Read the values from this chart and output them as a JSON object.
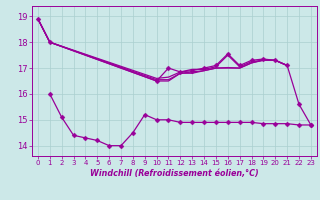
{
  "x": [
    0,
    1,
    2,
    3,
    4,
    5,
    6,
    7,
    8,
    9,
    10,
    11,
    12,
    13,
    14,
    15,
    16,
    17,
    18,
    19,
    20,
    21,
    22,
    23
  ],
  "line1": [
    18.9,
    18.0,
    null,
    null,
    null,
    null,
    null,
    null,
    null,
    null,
    16.5,
    16.5,
    16.8,
    16.8,
    16.9,
    17.0,
    17.0,
    17.0,
    17.2,
    17.3,
    17.3,
    17.1,
    null,
    null
  ],
  "line2": [
    18.9,
    18.0,
    null,
    null,
    null,
    null,
    null,
    null,
    null,
    null,
    16.6,
    16.65,
    16.85,
    16.95,
    16.95,
    17.05,
    17.5,
    17.05,
    17.25,
    17.3,
    17.3,
    17.1,
    null,
    null
  ],
  "line3": [
    18.9,
    18.0,
    null,
    null,
    null,
    null,
    null,
    null,
    null,
    null,
    16.55,
    16.55,
    16.8,
    16.85,
    16.9,
    17.0,
    17.02,
    17.0,
    17.2,
    17.32,
    17.3,
    17.1,
    null,
    null
  ],
  "scatter_upper": [
    18.9,
    18.0,
    null,
    null,
    null,
    null,
    null,
    null,
    null,
    null,
    16.5,
    17.0,
    16.85,
    16.9,
    17.0,
    17.1,
    17.55,
    17.1,
    17.3,
    17.35,
    17.3,
    17.1,
    15.6,
    14.8
  ],
  "scatter_lower": [
    null,
    16.0,
    15.1,
    14.4,
    14.3,
    14.2,
    14.0,
    14.0,
    14.5,
    15.2,
    15.0,
    15.0,
    14.9,
    14.9,
    14.9,
    14.9,
    14.9,
    14.9,
    14.9,
    14.85,
    14.85,
    14.85,
    14.8,
    14.8
  ],
  "xlabel": "Windchill (Refroidissement éolien,°C)",
  "xticks": [
    0,
    1,
    2,
    3,
    4,
    5,
    6,
    7,
    8,
    9,
    10,
    11,
    12,
    13,
    14,
    15,
    16,
    17,
    18,
    19,
    20,
    21,
    22,
    23
  ],
  "yticks": [
    14,
    15,
    16,
    17,
    18,
    19
  ],
  "ylim": [
    13.6,
    19.4
  ],
  "xlim": [
    -0.5,
    23.5
  ],
  "bg_color": "#cce8e8",
  "grid_color": "#aacfcf",
  "line_color": "#990099",
  "marker_color": "#990099"
}
